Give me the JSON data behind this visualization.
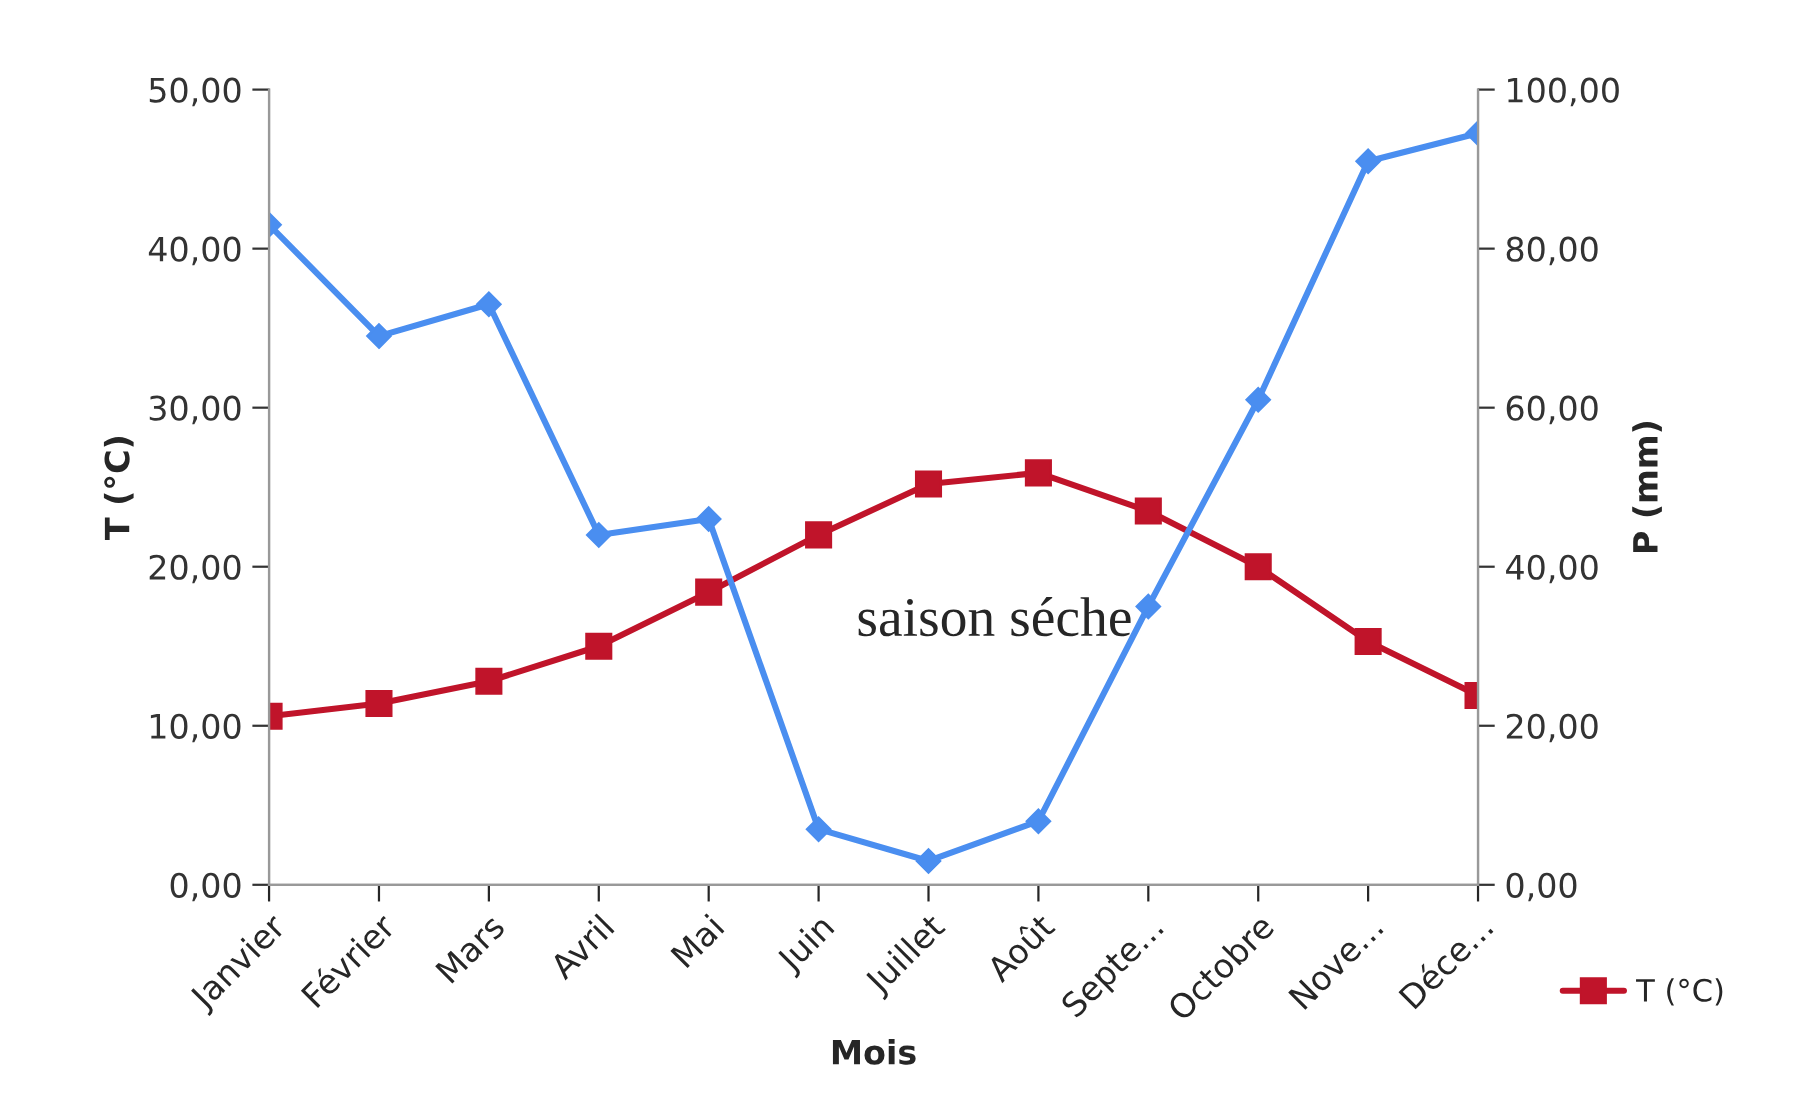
{
  "chart_data": {
    "type": "line",
    "xlabel": "Mois",
    "ylabel": "T (°C)",
    "y2label": "P (mm)",
    "categories": [
      "Janvier",
      "Février",
      "Mars",
      "Avril",
      "Mai",
      "Juin",
      "Juillet",
      "Août",
      "Septe...",
      "Octobre",
      "Nove...",
      "Déce..."
    ],
    "series": [
      {
        "name": "T (°C)",
        "color": "#c0142a",
        "marker": "square",
        "values": [
          10.6,
          11.4,
          12.8,
          15.0,
          18.4,
          22.0,
          25.2,
          25.9,
          23.5,
          20.0,
          15.3,
          11.9
        ]
      },
      {
        "color": "#4a8ef0",
        "marker": "diamond",
        "axis": "y2",
        "values": [
          83,
          69,
          73,
          44,
          46,
          7,
          3,
          8,
          35,
          61,
          91,
          94.5
        ]
      }
    ],
    "ylim": [
      0,
      50
    ],
    "yticks": [
      {
        "value": 0,
        "label": "0,00"
      },
      {
        "value": 10,
        "label": "10,00"
      },
      {
        "value": 20,
        "label": "20,00"
      },
      {
        "value": 30,
        "label": "30,00"
      },
      {
        "value": 40,
        "label": "40,00"
      },
      {
        "value": 50,
        "label": "50,00"
      }
    ],
    "y2lim": [
      0,
      100
    ],
    "y2ticks": [
      {
        "value": 0,
        "label": "0,00"
      },
      {
        "value": 20,
        "label": "20,00"
      },
      {
        "value": 40,
        "label": "40,00"
      },
      {
        "value": 60,
        "label": "60,00"
      },
      {
        "value": 80,
        "label": "80,00"
      },
      {
        "value": 100,
        "label": "100,00"
      }
    ],
    "annotations": [
      "saison séche"
    ],
    "legend": "bottom right",
    "grid": false,
    "line_style": "solid"
  }
}
